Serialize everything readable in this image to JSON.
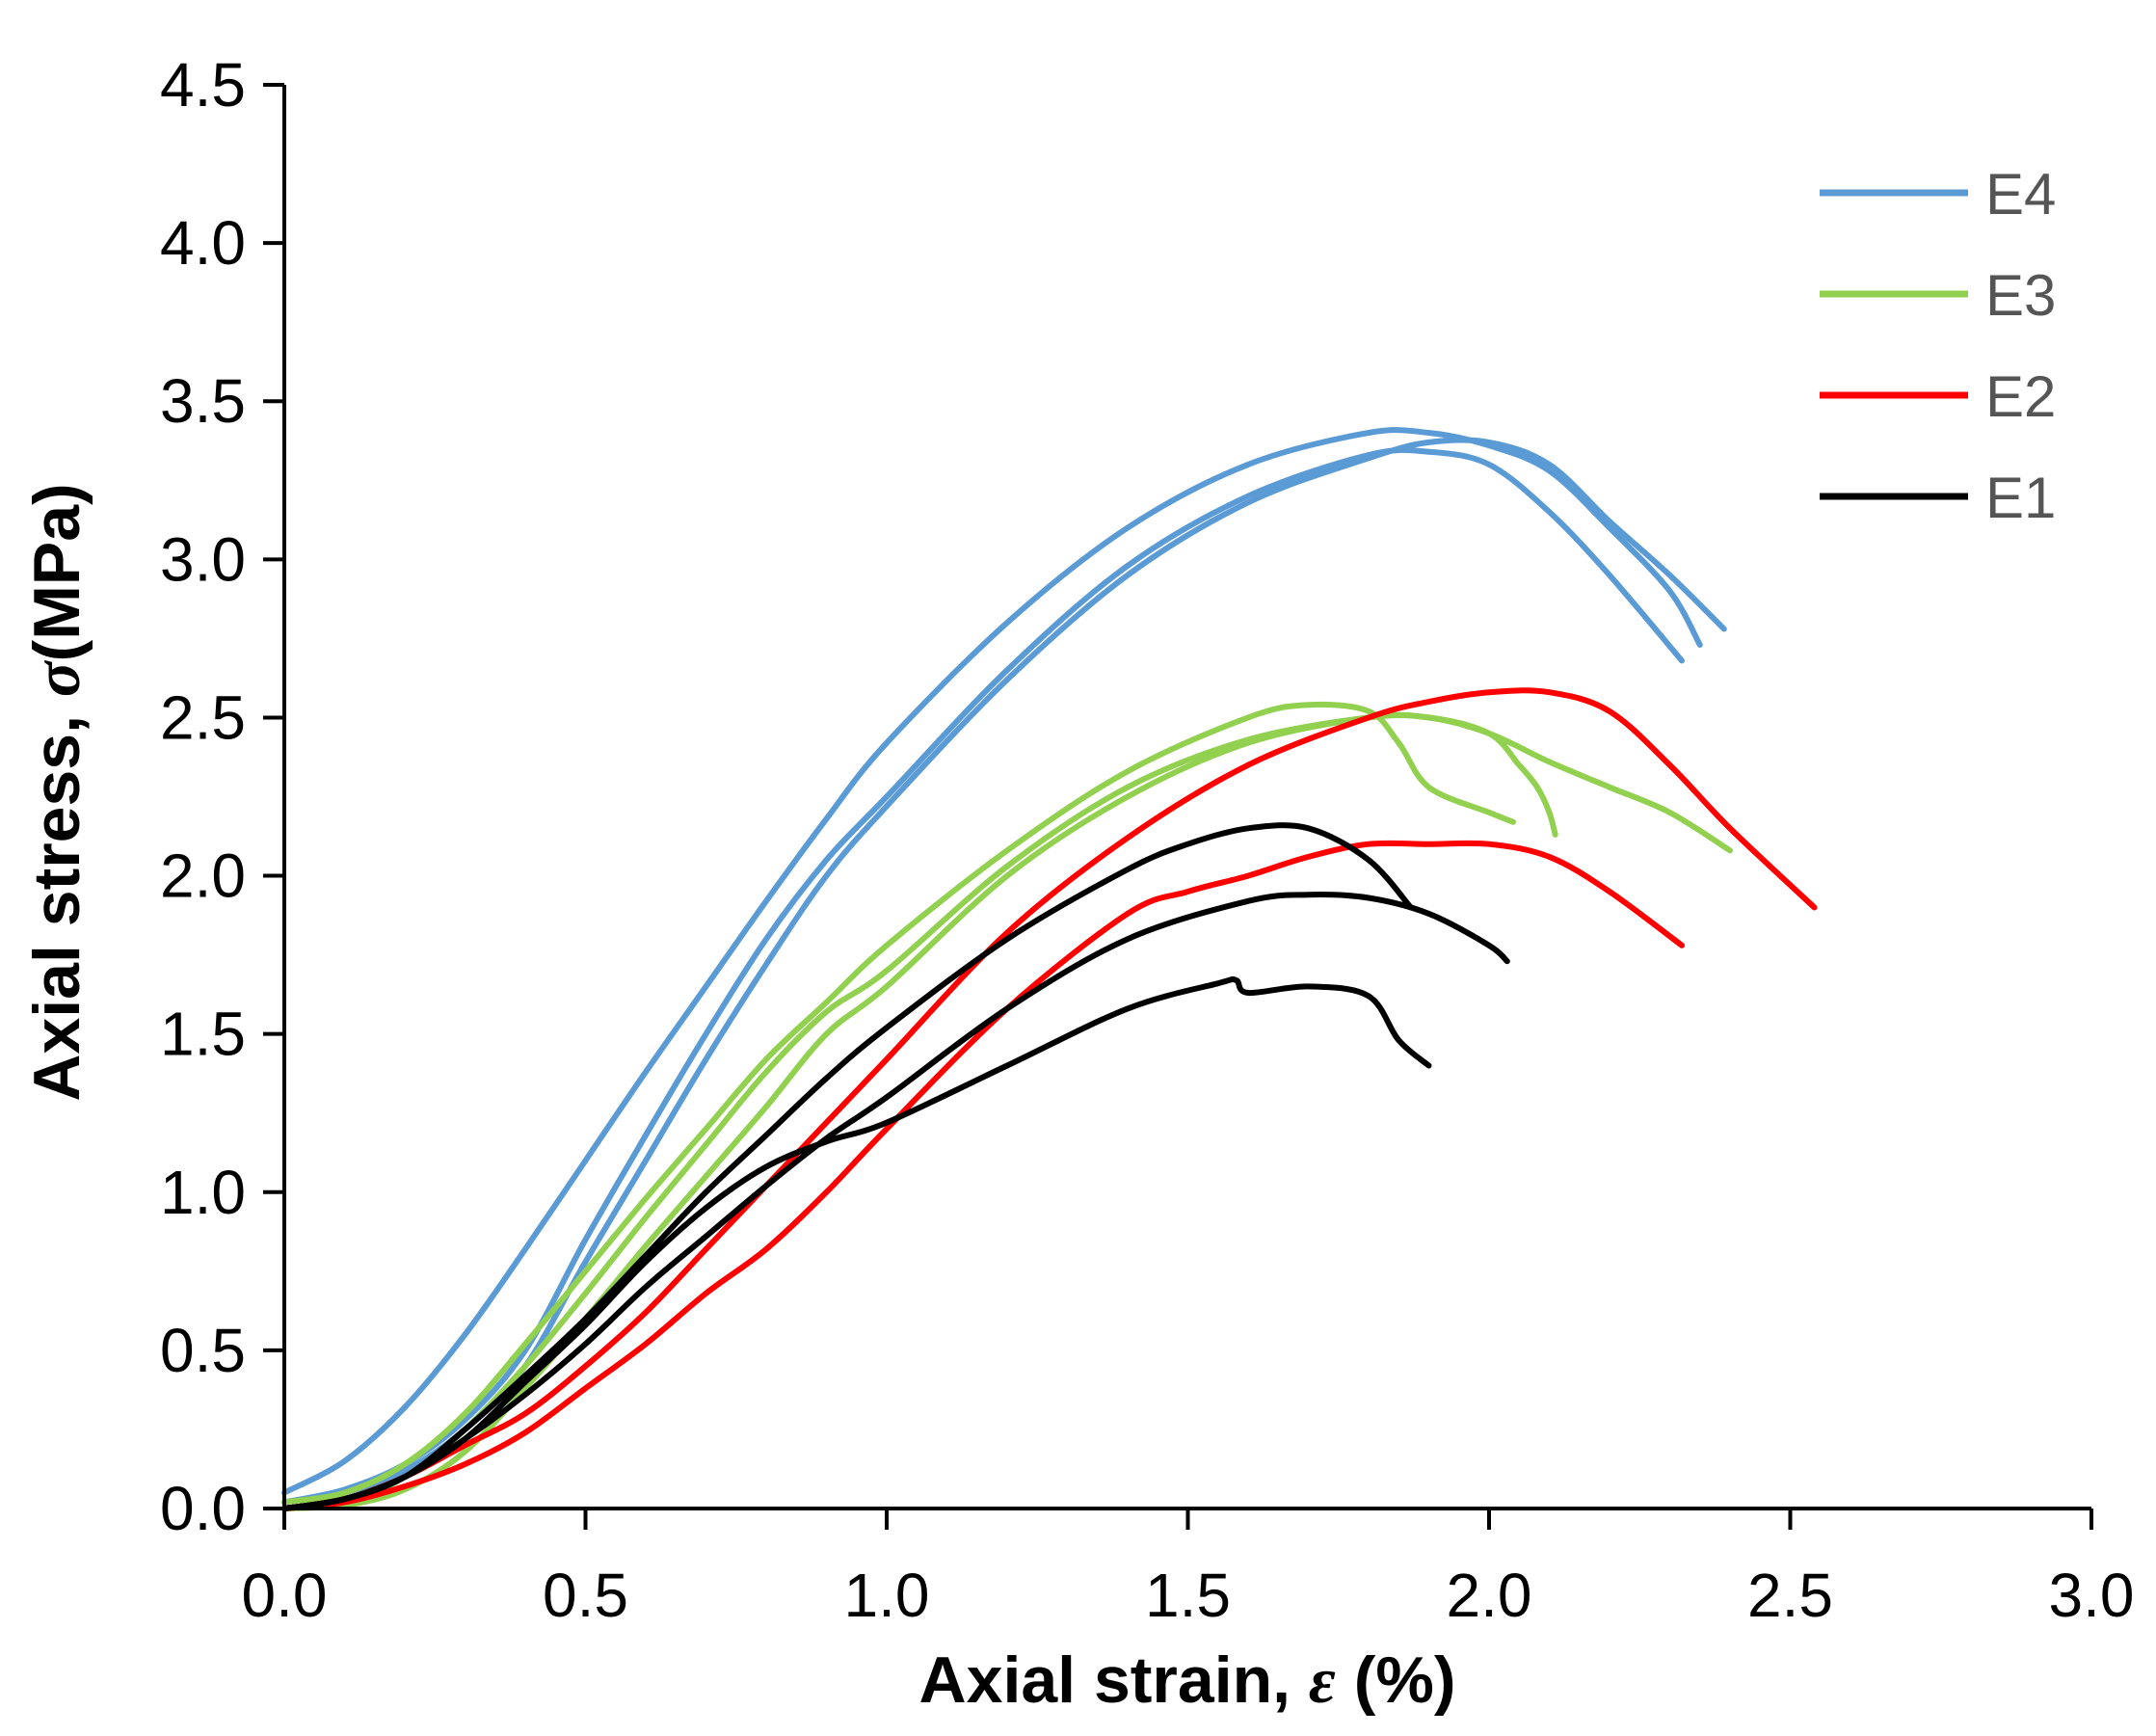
{
  "chart_data": {
    "type": "line",
    "title": "",
    "xlabel": {
      "prefix": "Axial strain, ",
      "symbol": "ε",
      "suffix": " (%)"
    },
    "ylabel": {
      "prefix": "Axial stress, ",
      "symbol": "σ",
      "suffix": "(MPa)"
    },
    "xlim": [
      0,
      3.0
    ],
    "ylim": [
      0,
      4.5
    ],
    "xticks": [
      "0.0",
      "0.5",
      "1.0",
      "1.5",
      "2.0",
      "2.5",
      "3.0"
    ],
    "yticks": [
      "0.0",
      "0.5",
      "1.0",
      "1.5",
      "2.0",
      "2.5",
      "3.0",
      "3.5",
      "4.0",
      "4.5"
    ],
    "grid": false,
    "legend_position": "top-right",
    "legend": [
      {
        "name": "E4",
        "color": "#5B9BD5"
      },
      {
        "name": "E3",
        "color": "#92D050"
      },
      {
        "name": "E2",
        "color": "#FF0000"
      },
      {
        "name": "E1",
        "color": "#000000"
      }
    ],
    "series": [
      {
        "name": "E4",
        "color": "#5B9BD5",
        "x": [
          0.0,
          0.1,
          0.2,
          0.3,
          0.4,
          0.5,
          0.6,
          0.7,
          0.8,
          0.9,
          1.0,
          1.2,
          1.4,
          1.6,
          1.8,
          1.9,
          2.0,
          2.1,
          2.2,
          2.3,
          2.35
        ],
        "y": [
          0.05,
          0.15,
          0.32,
          0.55,
          0.82,
          1.1,
          1.38,
          1.65,
          1.92,
          2.18,
          2.42,
          2.8,
          3.1,
          3.3,
          3.4,
          3.4,
          3.36,
          3.28,
          3.1,
          2.9,
          2.73
        ]
      },
      {
        "name": "E4",
        "color": "#5B9BD5",
        "x": [
          0.0,
          0.1,
          0.2,
          0.3,
          0.4,
          0.5,
          0.6,
          0.7,
          0.8,
          0.9,
          1.0,
          1.2,
          1.4,
          1.6,
          1.8,
          1.9,
          2.0,
          2.1,
          2.2,
          2.32
        ],
        "y": [
          0.02,
          0.06,
          0.14,
          0.28,
          0.5,
          0.85,
          1.18,
          1.5,
          1.8,
          2.05,
          2.25,
          2.65,
          2.98,
          3.2,
          3.33,
          3.34,
          3.3,
          3.15,
          2.95,
          2.68
        ]
      },
      {
        "name": "E4",
        "color": "#5B9BD5",
        "x": [
          0.0,
          0.1,
          0.2,
          0.3,
          0.4,
          0.5,
          0.6,
          0.7,
          0.8,
          0.9,
          1.0,
          1.2,
          1.4,
          1.6,
          1.8,
          1.9,
          2.0,
          2.1,
          2.2,
          2.3,
          2.39
        ],
        "y": [
          0.02,
          0.05,
          0.12,
          0.25,
          0.45,
          0.78,
          1.1,
          1.42,
          1.72,
          2.0,
          2.22,
          2.62,
          2.95,
          3.18,
          3.32,
          3.37,
          3.37,
          3.3,
          3.12,
          2.95,
          2.78
        ]
      },
      {
        "name": "E3",
        "color": "#92D050",
        "x": [
          0.0,
          0.1,
          0.2,
          0.3,
          0.4,
          0.5,
          0.6,
          0.7,
          0.8,
          0.9,
          1.0,
          1.2,
          1.4,
          1.6,
          1.7,
          1.8,
          1.85,
          1.9,
          2.0,
          2.04
        ],
        "y": [
          0.02,
          0.05,
          0.14,
          0.3,
          0.52,
          0.75,
          0.98,
          1.2,
          1.42,
          1.6,
          1.78,
          2.08,
          2.33,
          2.5,
          2.54,
          2.52,
          2.42,
          2.28,
          2.2,
          2.17
        ]
      },
      {
        "name": "E3",
        "color": "#92D050",
        "x": [
          0.0,
          0.1,
          0.2,
          0.3,
          0.4,
          0.5,
          0.6,
          0.7,
          0.8,
          0.9,
          1.0,
          1.2,
          1.4,
          1.6,
          1.8,
          1.9,
          2.0,
          2.05,
          2.08,
          2.1,
          2.11
        ],
        "y": [
          0.0,
          0.02,
          0.1,
          0.25,
          0.45,
          0.68,
          0.92,
          1.15,
          1.38,
          1.57,
          1.7,
          2.03,
          2.28,
          2.43,
          2.5,
          2.5,
          2.45,
          2.35,
          2.28,
          2.2,
          2.13
        ]
      },
      {
        "name": "E3",
        "color": "#92D050",
        "x": [
          0.0,
          0.1,
          0.2,
          0.3,
          0.4,
          0.5,
          0.6,
          0.7,
          0.8,
          0.9,
          1.0,
          1.2,
          1.4,
          1.6,
          1.8,
          1.9,
          2.0,
          2.1,
          2.2,
          2.3,
          2.4
        ],
        "y": [
          0.0,
          0.01,
          0.06,
          0.18,
          0.38,
          0.6,
          0.83,
          1.05,
          1.27,
          1.5,
          1.65,
          2.0,
          2.25,
          2.42,
          2.5,
          2.5,
          2.45,
          2.36,
          2.28,
          2.2,
          2.08
        ]
      },
      {
        "name": "E2",
        "color": "#FF0000",
        "x": [
          0.0,
          0.1,
          0.2,
          0.3,
          0.4,
          0.5,
          0.6,
          0.7,
          0.8,
          0.9,
          1.0,
          1.2,
          1.4,
          1.6,
          1.8,
          1.9,
          2.0,
          2.1,
          2.2,
          2.3,
          2.4,
          2.54
        ],
        "y": [
          0.0,
          0.03,
          0.1,
          0.2,
          0.3,
          0.45,
          0.62,
          0.82,
          1.02,
          1.22,
          1.42,
          1.82,
          2.12,
          2.35,
          2.5,
          2.55,
          2.58,
          2.58,
          2.52,
          2.35,
          2.15,
          1.9
        ]
      },
      {
        "name": "E2",
        "color": "#FF0000",
        "x": [
          0.0,
          0.1,
          0.2,
          0.3,
          0.4,
          0.5,
          0.6,
          0.7,
          0.8,
          0.9,
          1.0,
          1.2,
          1.4,
          1.5,
          1.6,
          1.7,
          1.8,
          1.9,
          2.0,
          2.1,
          2.2,
          2.32
        ],
        "y": [
          0.0,
          0.02,
          0.07,
          0.14,
          0.24,
          0.38,
          0.52,
          0.68,
          0.82,
          1.0,
          1.2,
          1.58,
          1.88,
          1.95,
          2.0,
          2.06,
          2.1,
          2.1,
          2.1,
          2.06,
          1.95,
          1.78
        ]
      },
      {
        "name": "E1",
        "color": "#000000",
        "x": [
          0.0,
          0.1,
          0.2,
          0.3,
          0.4,
          0.5,
          0.6,
          0.7,
          0.8,
          0.9,
          1.0,
          1.2,
          1.4,
          1.5,
          1.6,
          1.7,
          1.8,
          1.87
        ],
        "y": [
          0.0,
          0.03,
          0.1,
          0.25,
          0.42,
          0.6,
          0.8,
          1.0,
          1.18,
          1.36,
          1.52,
          1.8,
          2.02,
          2.1,
          2.15,
          2.15,
          2.05,
          1.9
        ]
      },
      {
        "name": "E1",
        "color": "#000000",
        "x": [
          0.0,
          0.1,
          0.2,
          0.3,
          0.4,
          0.5,
          0.6,
          0.7,
          0.8,
          0.9,
          1.0,
          1.2,
          1.4,
          1.6,
          1.7,
          1.8,
          1.9,
          2.0,
          2.03
        ],
        "y": [
          0.0,
          0.03,
          0.1,
          0.22,
          0.36,
          0.52,
          0.7,
          0.86,
          1.02,
          1.17,
          1.3,
          1.58,
          1.8,
          1.92,
          1.94,
          1.93,
          1.88,
          1.78,
          1.73
        ]
      },
      {
        "name": "E1",
        "color": "#000000",
        "x": [
          0.0,
          0.1,
          0.2,
          0.3,
          0.4,
          0.5,
          0.6,
          0.7,
          0.8,
          0.9,
          1.0,
          1.2,
          1.4,
          1.55,
          1.58,
          1.6,
          1.7,
          1.8,
          1.85,
          1.9
        ],
        "y": [
          0.0,
          0.03,
          0.1,
          0.22,
          0.4,
          0.58,
          0.78,
          0.95,
          1.08,
          1.16,
          1.22,
          1.4,
          1.58,
          1.66,
          1.67,
          1.63,
          1.65,
          1.62,
          1.48,
          1.4
        ]
      }
    ]
  }
}
